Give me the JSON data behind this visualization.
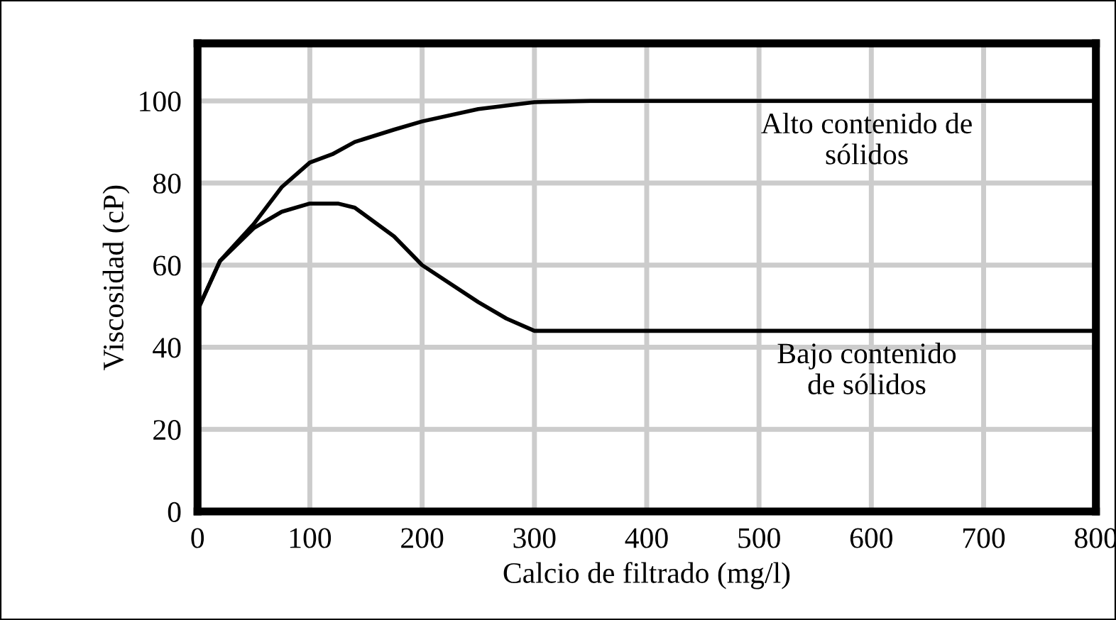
{
  "chart_data": {
    "type": "line",
    "xlabel": "Calcio de filtrado (mg/l)",
    "ylabel": "Viscosidad (cP)",
    "xlim": [
      0,
      800
    ],
    "xticks": [
      0,
      100,
      200,
      300,
      400,
      500,
      600,
      700,
      800
    ],
    "ylim": [
      0,
      114
    ],
    "yticks": [
      0,
      20,
      40,
      60,
      80,
      100
    ],
    "grid": true,
    "legend": false,
    "marker": "none",
    "line_style": "solid",
    "series": [
      {
        "name": "Alto contenido de\nsólidos",
        "color": "#000000",
        "x": [
          0,
          20,
          50,
          75,
          100,
          120,
          140,
          175,
          200,
          250,
          300,
          350,
          800
        ],
        "values": [
          49,
          61,
          70,
          79,
          85,
          87,
          90,
          93,
          95,
          98,
          99.7,
          100,
          100
        ]
      },
      {
        "name": "Bajo contenido\nde sólidos",
        "color": "#000000",
        "x": [
          0,
          20,
          50,
          75,
          100,
          125,
          140,
          175,
          200,
          250,
          275,
          300,
          320,
          800
        ],
        "values": [
          49,
          61,
          69,
          73,
          75,
          75,
          74,
          67,
          60,
          51,
          47,
          44,
          44,
          44
        ]
      }
    ]
  }
}
